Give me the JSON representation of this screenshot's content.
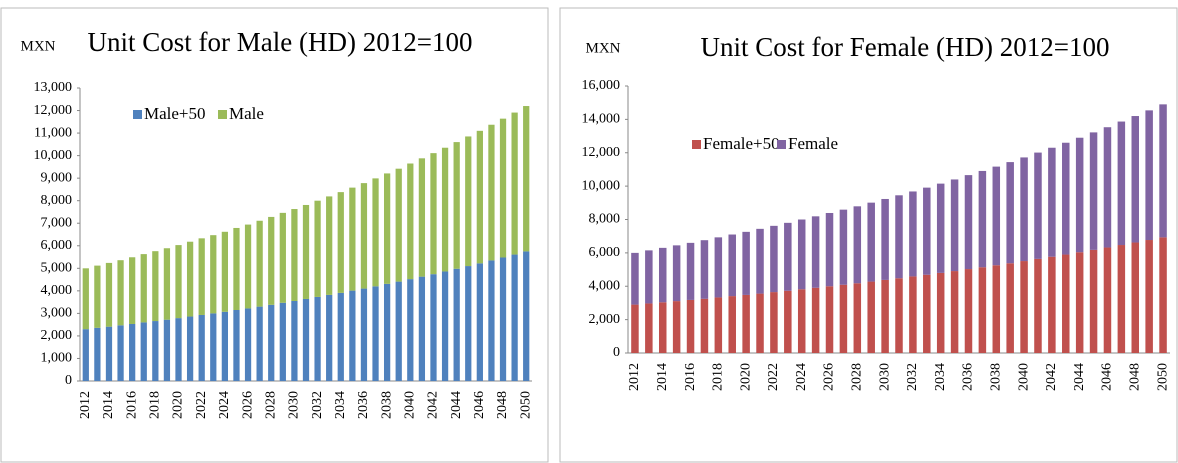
{
  "chart_data": [
    {
      "type": "bar",
      "stacked": true,
      "title": "Unit Cost for Male (HD) 2012=100",
      "y_label": "MXN",
      "categories": [
        "2012",
        null,
        "2014",
        null,
        "2016",
        null,
        "2018",
        null,
        "2020",
        null,
        "2022",
        null,
        "2024",
        null,
        "2026",
        null,
        "2028",
        null,
        "2030",
        null,
        "2032",
        null,
        "2034",
        null,
        "2036",
        null,
        "2038",
        null,
        "2040",
        null,
        "2042",
        null,
        "2044",
        null,
        "2046",
        null,
        "2048",
        null,
        "2050"
      ],
      "series": [
        {
          "name": "Male+50",
          "color": "#4f81bd",
          "values": [
            2300,
            2360,
            2410,
            2470,
            2530,
            2600,
            2660,
            2720,
            2790,
            2860,
            2930,
            3000,
            3070,
            3150,
            3220,
            3300,
            3380,
            3470,
            3550,
            3640,
            3730,
            3820,
            3910,
            4010,
            4100,
            4200,
            4310,
            4410,
            4520,
            4630,
            4740,
            4860,
            4980,
            5100,
            5220,
            5350,
            5480,
            5610,
            5750
          ]
        },
        {
          "name": "Male",
          "color": "#9bbb59",
          "values": [
            2700,
            2760,
            2830,
            2890,
            2960,
            3030,
            3100,
            3170,
            3240,
            3320,
            3400,
            3470,
            3550,
            3640,
            3720,
            3810,
            3900,
            3990,
            4080,
            4170,
            4270,
            4370,
            4470,
            4570,
            4680,
            4790,
            4900,
            5010,
            5130,
            5250,
            5370,
            5490,
            5620,
            5750,
            5880,
            6020,
            6160,
            6300,
            6450
          ]
        }
      ],
      "ylim": [
        0,
        13000
      ],
      "yticks": [
        0,
        {
          "value": 1000,
          "label": "1,000"
        },
        {
          "value": 2000,
          "label": "2,000"
        },
        {
          "value": 3000,
          "label": "3,000"
        },
        {
          "value": 4000,
          "label": "4,000"
        },
        {
          "value": 5000,
          "label": "5,000"
        },
        {
          "value": 6000,
          "label": "6,000"
        },
        {
          "value": 7000,
          "label": "7,000"
        },
        {
          "value": 8000,
          "label": "8,000"
        },
        {
          "value": 9000,
          "label": "9,000"
        },
        {
          "value": 10000,
          "label": "10,000"
        },
        {
          "value": 11000,
          "label": "11,000"
        },
        {
          "value": 12000,
          "label": "12,000"
        },
        {
          "value": 13000,
          "label": "13,000"
        }
      ],
      "legend": "top-left"
    },
    {
      "type": "bar",
      "stacked": true,
      "title": "Unit Cost for Female (HD) 2012=100",
      "y_label": "MXN",
      "categories": [
        "2012",
        null,
        "2014",
        null,
        "2016",
        null,
        "2018",
        null,
        "2020",
        null,
        "2022",
        null,
        "2024",
        null,
        "2026",
        null,
        "2028",
        null,
        "2030",
        null,
        "2032",
        null,
        "2034",
        null,
        "2036",
        null,
        "2038",
        null,
        "2040",
        null,
        "2042",
        null,
        "2044",
        null,
        "2046",
        null,
        "2048",
        null,
        "2050"
      ],
      "series": [
        {
          "name": "Female+50",
          "color": "#c0504d",
          "values": [
            2900,
            2970,
            3040,
            3110,
            3180,
            3250,
            3330,
            3410,
            3480,
            3560,
            3650,
            3730,
            3820,
            3910,
            4000,
            4090,
            4180,
            4280,
            4380,
            4480,
            4590,
            4690,
            4800,
            4910,
            5030,
            5140,
            5260,
            5380,
            5510,
            5640,
            5770,
            5900,
            6040,
            6180,
            6320,
            6470,
            6620,
            6770,
            6930
          ]
        },
        {
          "name": "Female",
          "color": "#8064a2",
          "values": [
            3100,
            3180,
            3260,
            3340,
            3420,
            3510,
            3600,
            3690,
            3780,
            3880,
            3970,
            4070,
            4180,
            4280,
            4390,
            4500,
            4610,
            4730,
            4850,
            4970,
            5090,
            5220,
            5350,
            5490,
            5630,
            5770,
            5910,
            6060,
            6210,
            6370,
            6530,
            6700,
            6860,
            7040,
            7210,
            7400,
            7580,
            7770,
            7970
          ]
        }
      ],
      "ylim": [
        0,
        16000
      ],
      "yticks": [
        0,
        {
          "value": 2000,
          "label": "2,000"
        },
        {
          "value": 4000,
          "label": "4,000"
        },
        {
          "value": 6000,
          "label": "6,000"
        },
        {
          "value": 8000,
          "label": "8,000"
        },
        {
          "value": 10000,
          "label": "10,000"
        },
        {
          "value": 12000,
          "label": "12,000"
        },
        {
          "value": 14000,
          "label": "14,000"
        },
        {
          "value": 16000,
          "label": "16,000"
        }
      ],
      "legend": "top-left"
    }
  ]
}
